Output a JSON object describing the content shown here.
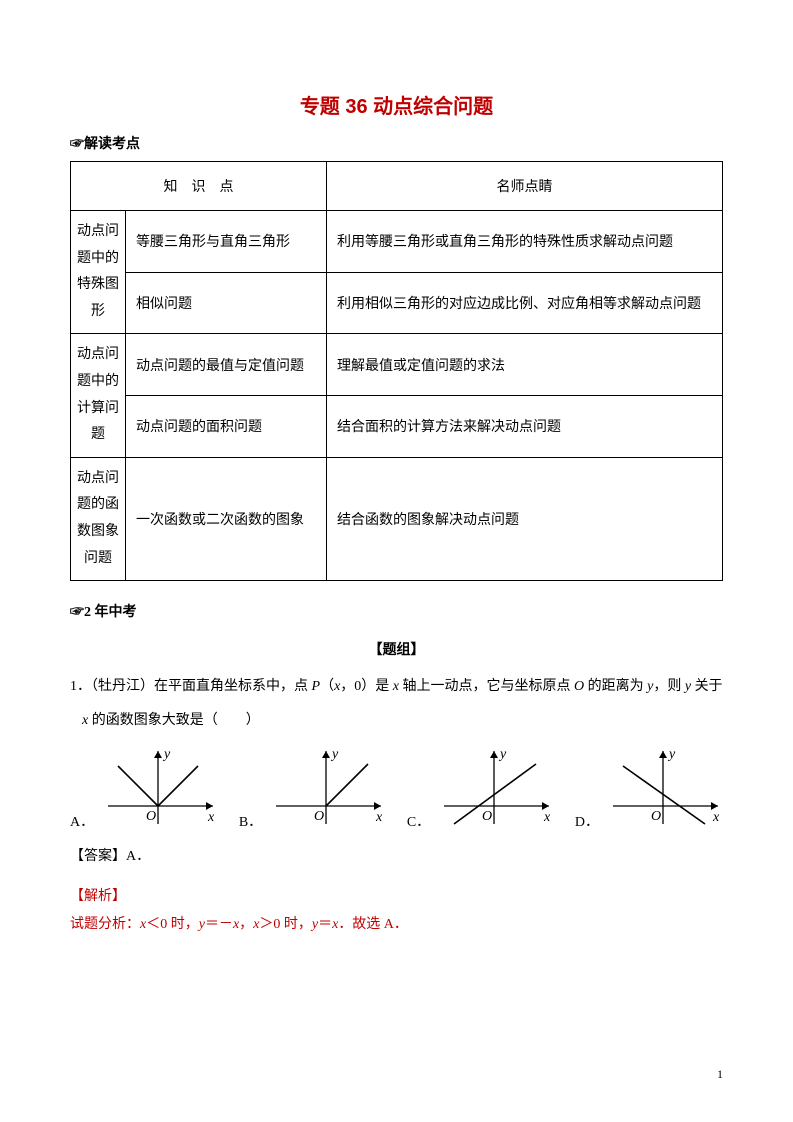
{
  "title": "专题 36 动点综合问题",
  "section1": "☞解读考点",
  "headers": {
    "col_ab": "知　识　点",
    "col_c": "名师点睛"
  },
  "groups": [
    {
      "label": "动点问\n题中的\n特殊图\n形",
      "rows": [
        {
          "k": "等腰三角形与直角三角形",
          "v": "利用等腰三角形或直角三角形的特殊性质求解动点问题"
        },
        {
          "k": "相似问题",
          "v": "利用相似三角形的对应边成比例、对应角相等求解动点问题"
        }
      ]
    },
    {
      "label": "动点问\n题中的\n计算问\n题",
      "rows": [
        {
          "k": "动点问题的最值与定值问题",
          "v": "理解最值或定值问题的求法"
        },
        {
          "k": "动点问题的面积问题",
          "v": "结合面积的计算方法来解决动点问题"
        }
      ]
    },
    {
      "label": "动点问\n题的函\n数图象\n问题",
      "rows": [
        {
          "k": "一次函数或二次函数的图象",
          "v": "结合函数的图象解决动点问题"
        }
      ]
    }
  ],
  "section2": "☞2 年中考",
  "group_title": "【题组】",
  "q1_prefix": "1．（牡丹江）在平面直角坐标系中，点 ",
  "q1_pvar": "P",
  "q1_mid1": "（",
  "q1_xvar": "x",
  "q1_mid2": "，0）是 ",
  "q1_xvar2": "x",
  "q1_mid3": " 轴上一动点，它与坐标原点 ",
  "q1_ovar": "O",
  "q1_mid4": " 的距离为 ",
  "q1_yvar": "y",
  "q1_mid5": "，则 ",
  "q1_yvar2": "y",
  "q1_mid6": " 关于",
  "q1_line2a_var": "x",
  "q1_line2b": " 的函数图象大致是（　　）",
  "opts": {
    "a": "A．",
    "b": "B．",
    "c": "C．",
    "d": "D．"
  },
  "answer_label": "【答案】A．",
  "analysis_label": "【解析】",
  "analysis_prefix": "试题分析：",
  "analysis_x1": "x",
  "analysis_t1": "＜0 时，",
  "analysis_y1": "y",
  "analysis_t2": "＝－",
  "analysis_x2": "x",
  "analysis_t3": "，",
  "analysis_x3": "x",
  "analysis_t4": "＞0 时，",
  "analysis_y2": "y",
  "analysis_t5": "＝",
  "analysis_x4": "x",
  "analysis_t6": "．故选 A．",
  "pagenum": "1",
  "graph_labels": {
    "x": "x",
    "y": "y",
    "o": "O"
  },
  "graphs": {
    "A": {
      "type": "abs",
      "left_slope": 1,
      "right_slope": 1
    },
    "B": {
      "type": "ramp",
      "left_zero": true,
      "right_slope": 1
    },
    "C": {
      "type": "line",
      "slope": 1
    },
    "D": {
      "type": "line",
      "slope": -1
    }
  },
  "colors": {
    "accent": "#c00000",
    "text": "#000000",
    "border": "#000000",
    "background": "#ffffff"
  }
}
